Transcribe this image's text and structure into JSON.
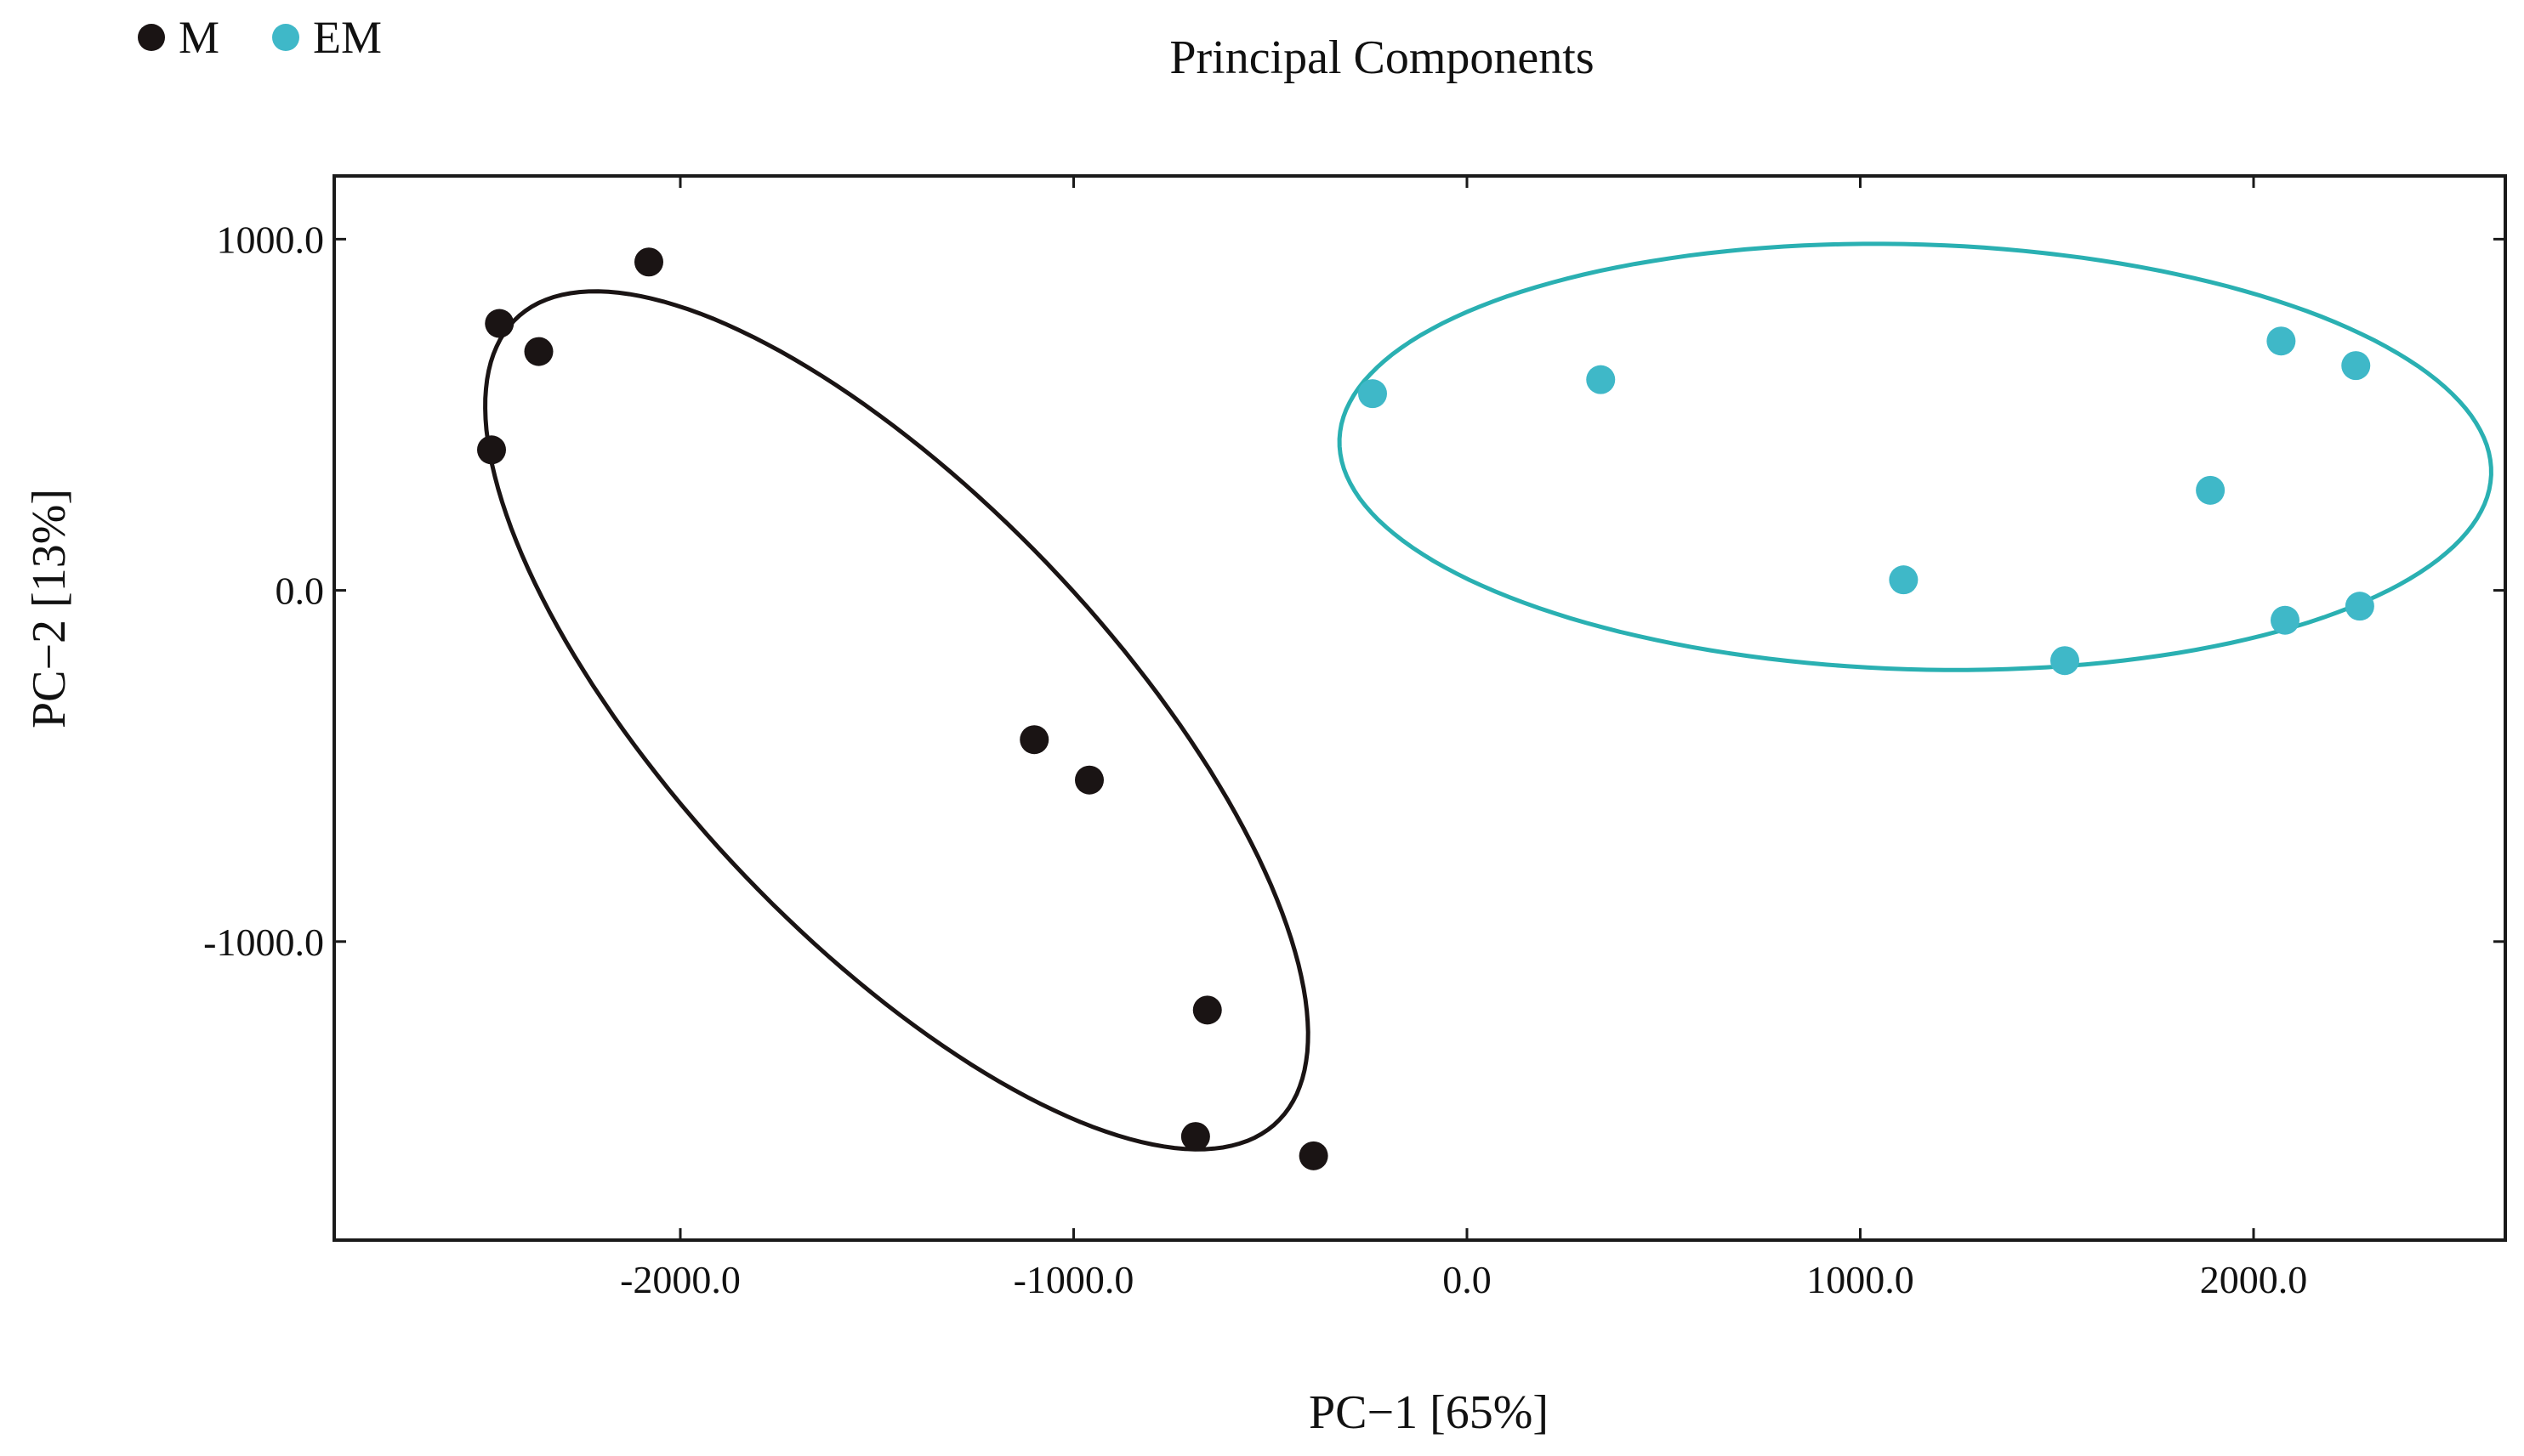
{
  "chart_data": {
    "type": "scatter",
    "title": "Principal Components",
    "xlabel": "PC−1 [65%]",
    "ylabel": "PC−2 [13%]",
    "xlim": [
      -2880,
      2640
    ],
    "ylim": [
      -1850,
      1180
    ],
    "xticks": [
      -2000,
      -1000,
      0,
      1000,
      2000
    ],
    "xtick_labels": [
      "-2000.0",
      "-1000.0",
      "0.0",
      "1000.0",
      "2000.0"
    ],
    "yticks": [
      1000,
      0,
      -1000
    ],
    "ytick_labels": [
      "1000.0",
      "0.0",
      "-1000.0"
    ],
    "grid": false,
    "legend_position": "top-left",
    "series": [
      {
        "name": "M",
        "color": "#1a1414",
        "points": [
          {
            "x": -2080,
            "y": 935
          },
          {
            "x": -2460,
            "y": 760
          },
          {
            "x": -2360,
            "y": 680
          },
          {
            "x": -2480,
            "y": 400
          },
          {
            "x": -1100,
            "y": -425
          },
          {
            "x": -960,
            "y": -540
          },
          {
            "x": -660,
            "y": -1195
          },
          {
            "x": -690,
            "y": -1555
          },
          {
            "x": -390,
            "y": -1610
          }
        ],
        "ellipse": {
          "cx": -1450,
          "cy": -370,
          "major_axis": 3000,
          "minor_axis": 1160,
          "angle_deg": -51,
          "stroke": "#1a1414"
        }
      },
      {
        "name": "EM",
        "color": "#3fb8c8",
        "points": [
          {
            "x": -240,
            "y": 560
          },
          {
            "x": 340,
            "y": 600
          },
          {
            "x": 1110,
            "y": 30
          },
          {
            "x": 1520,
            "y": -200
          },
          {
            "x": 1890,
            "y": 285
          },
          {
            "x": 2070,
            "y": 710
          },
          {
            "x": 2260,
            "y": 640
          },
          {
            "x": 2080,
            "y": -85
          },
          {
            "x": 2270,
            "y": -45
          }
        ],
        "ellipse": {
          "cx": 1140,
          "cy": 380,
          "major_axis": 2930,
          "minor_axis": 1210,
          "angle_deg": -2,
          "stroke": "#2ab0b2"
        }
      }
    ]
  }
}
